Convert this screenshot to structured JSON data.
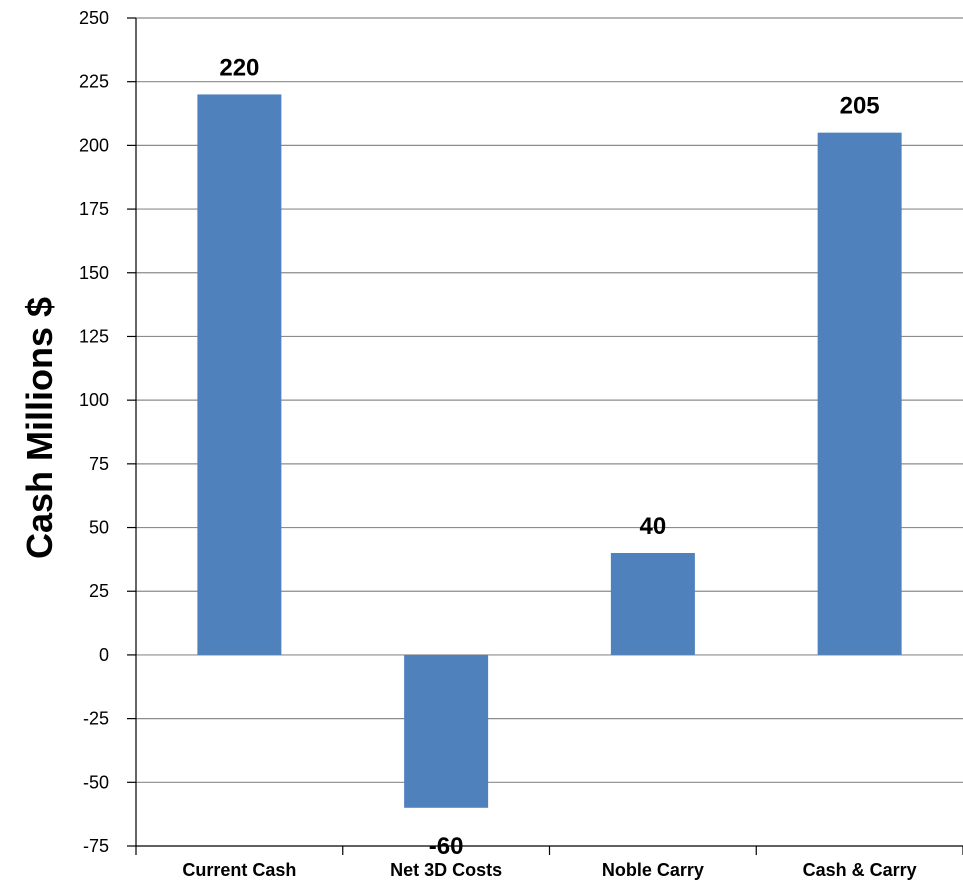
{
  "chart_data": {
    "type": "bar",
    "title": "",
    "xlabel": "",
    "ylabel": "Cash Millions $",
    "categories": [
      "Current Cash",
      "Net 3D Costs",
      "Noble Carry",
      "Cash & Carry"
    ],
    "values": [
      220,
      -60,
      40,
      205
    ],
    "data_labels": [
      "220",
      "-60",
      "40",
      "205"
    ],
    "ylim": [
      -75,
      250
    ],
    "y_ticks": [
      250,
      225,
      200,
      175,
      150,
      125,
      100,
      75,
      50,
      25,
      0,
      -25,
      -50,
      -75
    ],
    "y_tick_labels": [
      "250",
      "225",
      "200",
      "175",
      "150",
      "125",
      "100",
      "75",
      "50",
      "25",
      "0",
      "-25",
      "-50",
      "-75"
    ],
    "grid": true,
    "legend": "none",
    "colors": {
      "bar": "#4F81BD",
      "grid": "#8C8C8C",
      "axis": "#000000"
    }
  }
}
